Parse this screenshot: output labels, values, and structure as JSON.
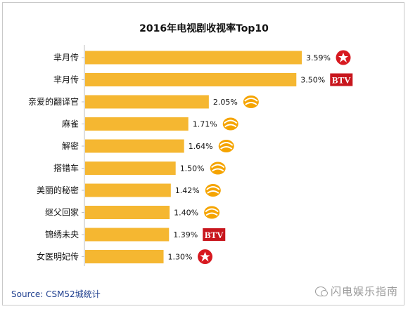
{
  "chart_data": {
    "type": "bar",
    "orientation": "horizontal",
    "title": "2016年电视剧收视率Top10",
    "categories": [
      "芈月传",
      "芈月传",
      "亲爱的翻译官",
      "麻雀",
      "解密",
      "搭错车",
      "美丽的秘密",
      "继父回家",
      "锦绣未央",
      "女医明妃传"
    ],
    "values": [
      3.59,
      3.5,
      2.05,
      1.71,
      1.64,
      1.5,
      1.42,
      1.4,
      1.39,
      1.3
    ],
    "value_labels": [
      "3.59%",
      "3.50%",
      "2.05%",
      "1.71%",
      "1.64%",
      "1.50%",
      "1.42%",
      "1.40%",
      "1.39%",
      "1.30%"
    ],
    "channel_logos": [
      "dragon-tv-logo",
      "btv-logo",
      "hunan-tv-logo",
      "hunan-tv-logo",
      "hunan-tv-logo",
      "hunan-tv-logo",
      "hunan-tv-logo",
      "hunan-tv-logo",
      "btv-logo",
      "dragon-tv-logo"
    ],
    "xlim": [
      0,
      3.59
    ],
    "grid": false,
    "bar_color": "#f5b731",
    "xlabel": "",
    "ylabel": ""
  },
  "logo_text": {
    "btv": "BTV"
  },
  "colors": {
    "bar": "#f5b731",
    "axis": "#bfbfbf",
    "dragon": "#d71920",
    "btv": "#c8161d",
    "hunan": "#f5a400"
  },
  "source": "Source: CSM52城统计",
  "watermark": "闪电娱乐指南"
}
